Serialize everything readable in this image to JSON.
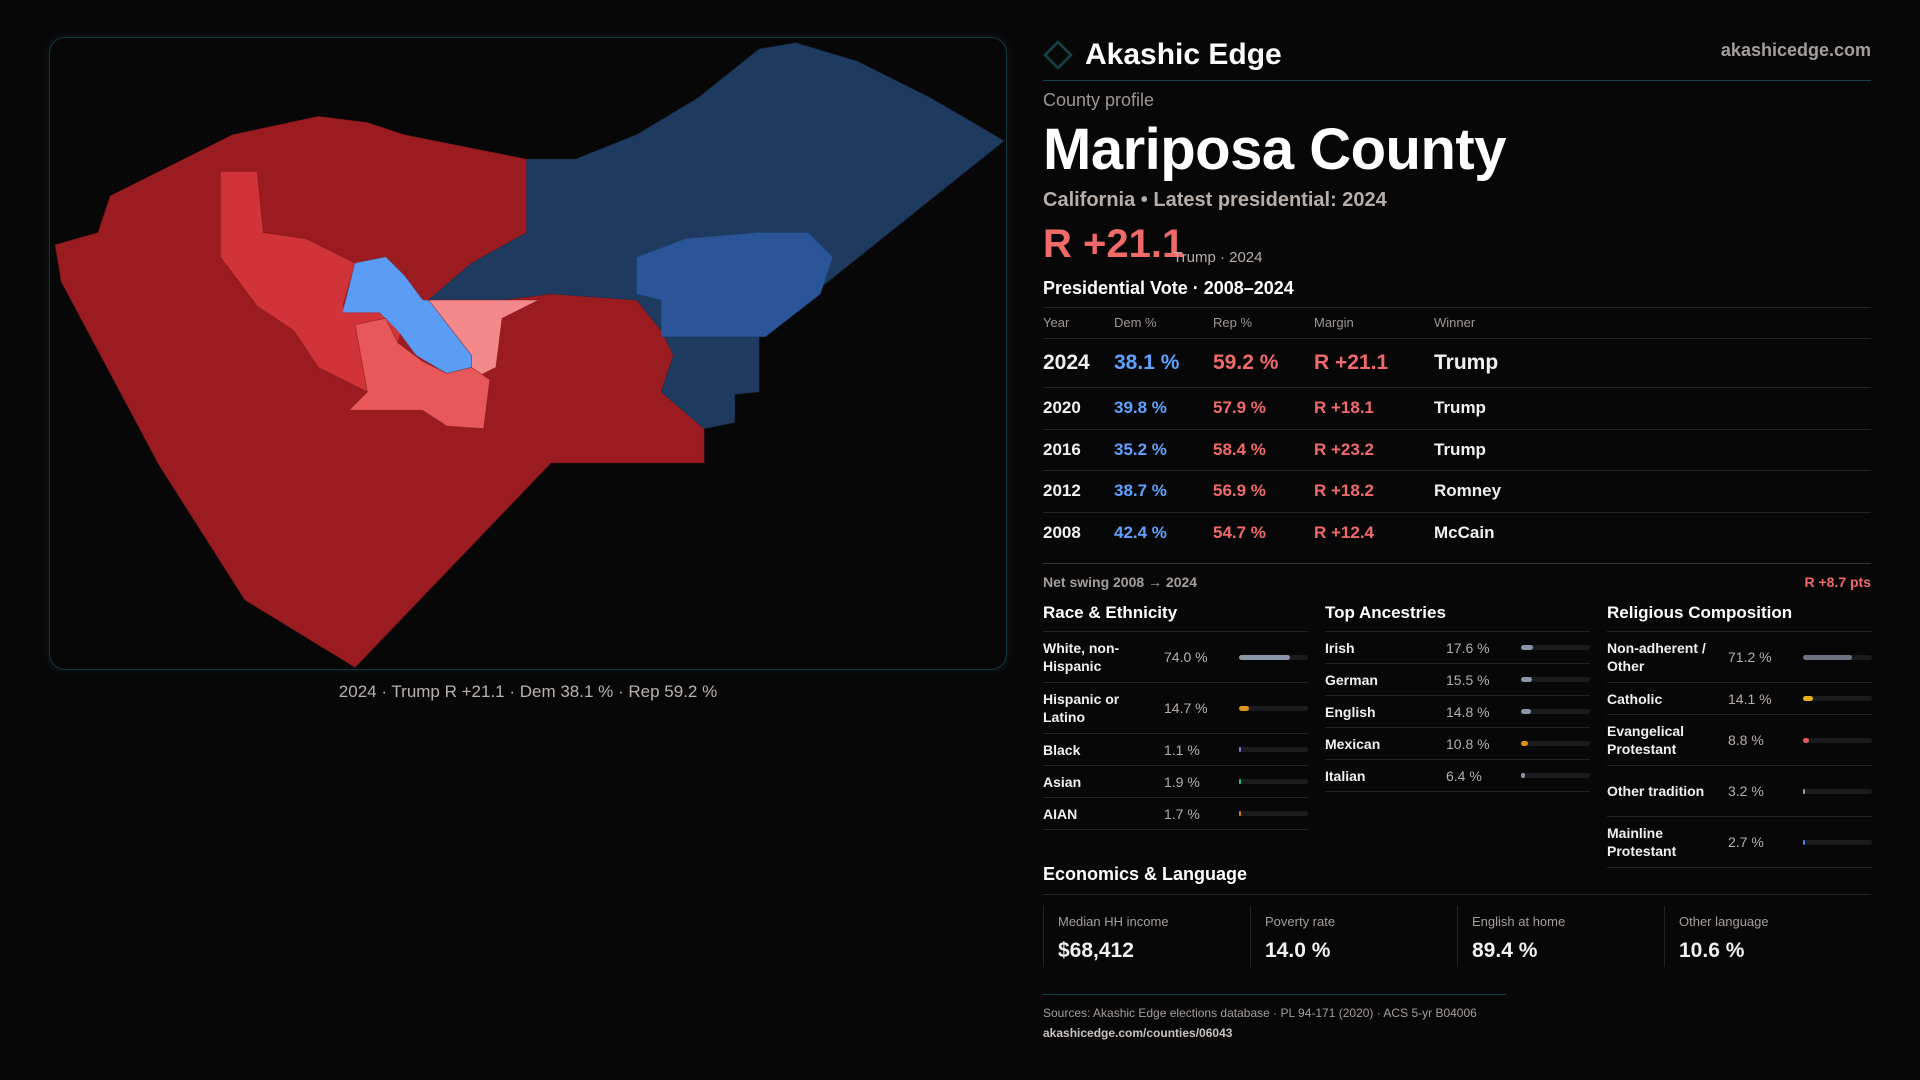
{
  "map": {
    "caption": "2024 · Trump R +21.1 · Dem 38.1 % · Rep 59.2 %",
    "colors": {
      "strong_rep": "#9b1c20",
      "rep": "#d13438",
      "lean_rep": "#e8585a",
      "tilt_rep": "#f4898b",
      "strong_dem": "#1e3a5f",
      "dem": "#2a5599",
      "lean_dem": "#5b9cf5"
    }
  },
  "header": {
    "brand": "Akashic Edge",
    "url": "akashicedge.com",
    "logo_icon": "diamond-icon"
  },
  "county": {
    "kicker": "County profile",
    "name": "Mariposa County",
    "subtitle": "California • Latest presidential: 2024",
    "margin": "R +21.1",
    "margin_note": "Trump · 2024"
  },
  "votes": {
    "title": "Presidential Vote · 2008–2024",
    "columns": [
      "Year",
      "Dem %",
      "Rep %",
      "Margin",
      "Winner"
    ],
    "rows": [
      {
        "year": "2024",
        "dem": "38.1 %",
        "rep": "59.2 %",
        "margin": "R +21.1",
        "winner": "Trump"
      },
      {
        "year": "2020",
        "dem": "39.8 %",
        "rep": "57.9 %",
        "margin": "R +18.1",
        "winner": "Trump"
      },
      {
        "year": "2016",
        "dem": "35.2 %",
        "rep": "58.4 %",
        "margin": "R +23.2",
        "winner": "Trump"
      },
      {
        "year": "2012",
        "dem": "38.7 %",
        "rep": "56.9 %",
        "margin": "R +18.2",
        "winner": "Romney"
      },
      {
        "year": "2008",
        "dem": "42.4 %",
        "rep": "54.7 %",
        "margin": "R +12.4",
        "winner": "McCain"
      }
    ],
    "swing_label": "Net swing 2008 → 2024",
    "swing_value": "R +8.7 pts"
  },
  "race": {
    "title": "Race & Ethnicity",
    "items": [
      {
        "label": "White, non-Hispanic",
        "value": "74.0 %",
        "pct": 74.0,
        "color": "#8a96a8"
      },
      {
        "label": "Hispanic or Latino",
        "value": "14.7 %",
        "pct": 14.7,
        "color": "#e0940f"
      },
      {
        "label": "Black",
        "value": "1.1 %",
        "pct": 1.1,
        "color": "#8b6fd6"
      },
      {
        "label": "Asian",
        "value": "1.9 %",
        "pct": 1.9,
        "color": "#2fbf8f"
      },
      {
        "label": "AIAN",
        "value": "1.7 %",
        "pct": 1.7,
        "color": "#e07b1a"
      }
    ]
  },
  "ancestry": {
    "title": "Top Ancestries",
    "items": [
      {
        "label": "Irish",
        "value": "17.6 %",
        "pct": 17.6,
        "color": "#8a96a8"
      },
      {
        "label": "German",
        "value": "15.5 %",
        "pct": 15.5,
        "color": "#8a96a8"
      },
      {
        "label": "English",
        "value": "14.8 %",
        "pct": 14.8,
        "color": "#8a96a8"
      },
      {
        "label": "Mexican",
        "value": "10.8 %",
        "pct": 10.8,
        "color": "#e0940f"
      },
      {
        "label": "Italian",
        "value": "6.4 %",
        "pct": 6.4,
        "color": "#8a96a8"
      }
    ]
  },
  "religion": {
    "title": "Religious Composition",
    "items": [
      {
        "label": "Non-adherent / Other",
        "value": "71.2 %",
        "pct": 71.2,
        "color": "#6b7280"
      },
      {
        "label": "Catholic",
        "value": "14.1 %",
        "pct": 14.1,
        "color": "#e3b11a"
      },
      {
        "label": "Evangelical Protestant",
        "value": "8.8 %",
        "pct": 8.8,
        "color": "#e05a5a"
      },
      {
        "label": "Other tradition",
        "value": "3.2 %",
        "pct": 3.2,
        "color": "#9ca3af"
      },
      {
        "label": "Mainline Protestant",
        "value": "2.7 %",
        "pct": 2.7,
        "color": "#4a86e8"
      }
    ]
  },
  "economics": {
    "title": "Economics & Language",
    "cards": [
      {
        "label": "Median HH income",
        "value": "$68,412"
      },
      {
        "label": "Poverty rate",
        "value": "14.0 %"
      },
      {
        "label": "English at home",
        "value": "89.4 %"
      },
      {
        "label": "Other language",
        "value": "10.6 %"
      }
    ]
  },
  "footer": {
    "sources": "Sources: Akashic Edge elections database · PL 94-171 (2020) · ACS 5-yr B04006",
    "link": "akashicedge.com/counties/06043"
  }
}
